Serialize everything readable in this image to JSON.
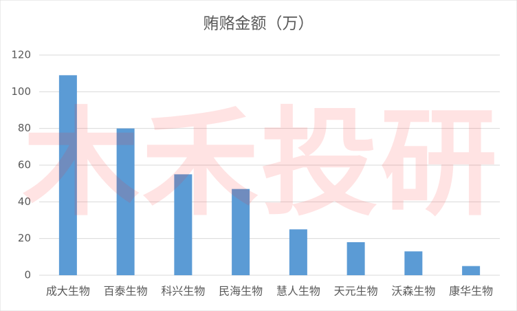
{
  "chart_data": {
    "type": "bar",
    "title": "贿赂金额（万）",
    "watermark": "木禾投研",
    "categories": [
      "成大生物",
      "百泰生物",
      "科兴生物",
      "民海生物",
      "慧人生物",
      "天元生物",
      "沃森生物",
      "康华生物"
    ],
    "values": [
      109,
      80,
      55,
      47,
      25,
      18,
      13,
      5
    ],
    "color": "#5b9bd5",
    "ylim": [
      0,
      120
    ],
    "yticks": [
      0,
      20,
      40,
      60,
      80,
      100,
      120
    ],
    "grid": true
  }
}
